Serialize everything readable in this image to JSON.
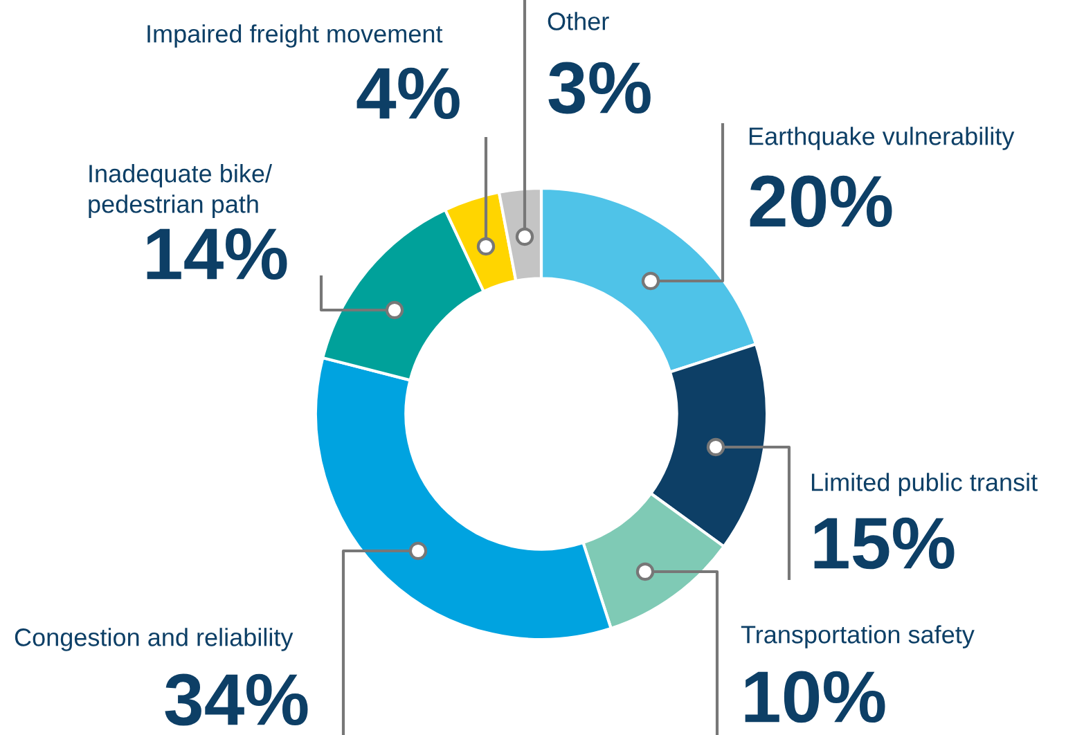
{
  "chart_data": {
    "type": "donut",
    "categories": [
      "Earthquake vulnerability",
      "Limited public transit",
      "Transportation safety",
      "Congestion and reliability",
      "Inadequate bike/\npedestrian path",
      "Impaired freight movement",
      "Other"
    ],
    "values": [
      20,
      15,
      10,
      34,
      14,
      4,
      3
    ],
    "colors": [
      "#4fc3e8",
      "#0d3f66",
      "#7fcab5",
      "#00a3e0",
      "#00a19a",
      "#ffd500",
      "#c4c4c4"
    ],
    "value_labels": [
      "20%",
      "15%",
      "10%",
      "34%",
      "14%",
      "4%",
      "3%"
    ]
  }
}
